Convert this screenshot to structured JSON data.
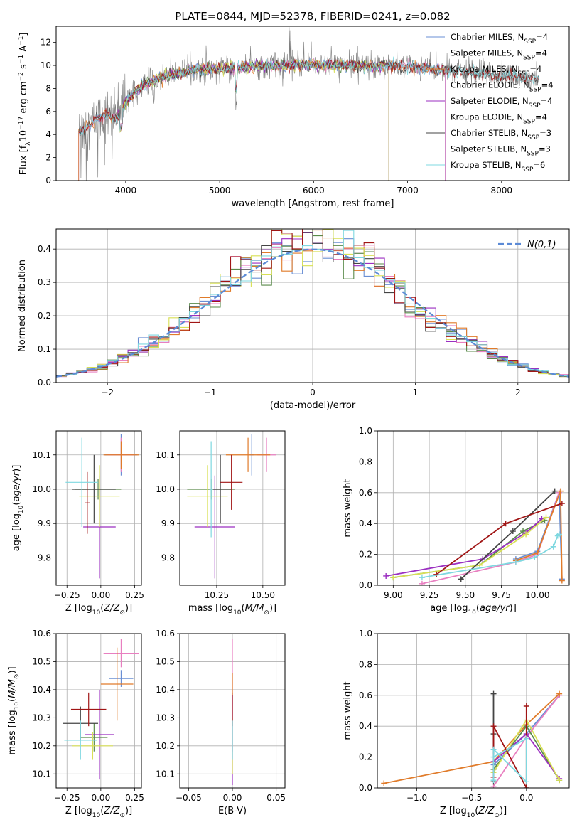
{
  "figure_title": "PLATE=0844, MJD=52378, FIBERID=0241, z=0.082",
  "palette": {
    "Chabrier MILES": "#6a8fd4",
    "Salpeter MILES": "#e87fc0",
    "Kroupa MILES": "#e07b2a",
    "Chabrier ELODIE": "#5a8a4a",
    "Salpeter ELODIE": "#9b2fc1",
    "Kroupa ELODIE": "#d8e055",
    "Chabrier STELIB": "#444444",
    "Salpeter STELIB": "#a01515",
    "Kroupa STELIB": "#7fd8e0",
    "data": "#808080",
    "normal": "#5b8ad6",
    "grid": "#b0b0b0"
  },
  "chart_data": [
    {
      "id": "spectrum",
      "type": "line",
      "xlabel": "wavelength [Angstrom, rest frame]",
      "ylabel": "Flux [f_λ 10^-17 erg cm^-2 s^-1 A^-1]",
      "xlim": [
        3260,
        8720
      ],
      "ylim": [
        0,
        13.4
      ],
      "xticks": [
        4000,
        5000,
        6000,
        7000,
        8000
      ],
      "yticks": [
        0,
        2,
        4,
        6,
        8,
        10,
        12
      ],
      "grid": false,
      "legend_position": "right",
      "legend": [
        {
          "name": "Chabrier MILES",
          "nssp": "4"
        },
        {
          "name": "Salpeter MILES",
          "nssp": "4"
        },
        {
          "name": "Kroupa MILES",
          "nssp": "4"
        },
        {
          "name": "Chabrier ELODIE",
          "nssp": "4"
        },
        {
          "name": "Salpeter ELODIE",
          "nssp": "4"
        },
        {
          "name": "Kroupa ELODIE",
          "nssp": "4"
        },
        {
          "name": "Chabrier STELIB",
          "nssp": "3"
        },
        {
          "name": "Salpeter STELIB",
          "nssp": "3"
        },
        {
          "name": "Kroupa STELIB",
          "nssp": "6"
        }
      ],
      "continuum": {
        "x": [
          3500,
          3600,
          3700,
          3800,
          3900,
          4000,
          4100,
          4200,
          4300,
          4500,
          4700,
          5000,
          5300,
          5600,
          6000,
          6300,
          6600,
          7000,
          7400,
          7800,
          8200,
          8400
        ],
        "y": [
          4.2,
          4.6,
          5.4,
          5.7,
          5.3,
          6.8,
          7.8,
          8.3,
          8.7,
          9.2,
          9.6,
          9.7,
          9.9,
          10.0,
          10.1,
          10.0,
          10.0,
          9.9,
          9.6,
          9.3,
          9.0,
          8.8
        ]
      },
      "series_ranges": {
        "Chabrier MILES": [
          3500,
          7400
        ],
        "Salpeter MILES": [
          3500,
          7400
        ],
        "Kroupa MILES": [
          3500,
          7430
        ],
        "Chabrier ELODIE": [
          3900,
          6800
        ],
        "Salpeter ELODIE": [
          3900,
          6800
        ],
        "Kroupa ELODIE": [
          3900,
          6800
        ],
        "Chabrier STELIB": [
          3500,
          8400
        ],
        "Salpeter STELIB": [
          3500,
          8400
        ],
        "Kroupa STELIB": [
          3500,
          8400
        ]
      }
    },
    {
      "id": "residuals",
      "type": "line",
      "xlabel": "(data-model)/error",
      "ylabel": "Normed distribution",
      "xlim": [
        -2.5,
        2.5
      ],
      "ylim": [
        0,
        0.46
      ],
      "xticks": [
        -2,
        -1,
        0,
        1,
        2
      ],
      "yticks": [
        0.0,
        0.1,
        0.2,
        0.3,
        0.4
      ],
      "grid": true,
      "legend_position": "top-right",
      "normal_label": "N(0,1)",
      "bin_width": 0.1
    },
    {
      "id": "age_vs_Z",
      "type": "scatter",
      "xlabel": "Z [log10(Z/Z⊙)]",
      "ylabel": "age  [log10(age/yr)]",
      "xlim": [
        -0.33,
        0.3
      ],
      "ylim": [
        9.72,
        10.17
      ],
      "xticks": [
        -0.25,
        0.0,
        0.25
      ],
      "yticks": [
        9.8,
        9.9,
        10.0,
        10.1
      ],
      "grid": true,
      "points": [
        {
          "series": "Chabrier MILES",
          "x": 0.15,
          "y": 10.1,
          "xerr": 0.12,
          "yerr": 0.06
        },
        {
          "series": "Salpeter MILES",
          "x": 0.15,
          "y": 10.1,
          "xerr": 0.1,
          "yerr": 0.05
        },
        {
          "series": "Kroupa MILES",
          "x": 0.15,
          "y": 10.1,
          "xerr": 0.13,
          "yerr": 0.04
        },
        {
          "series": "Chabrier ELODIE",
          "x": -0.02,
          "y": 10.0,
          "xerr": 0.17,
          "yerr": 0.03
        },
        {
          "series": "Salpeter ELODIE",
          "x": -0.01,
          "y": 9.89,
          "xerr": 0.12,
          "yerr": 0.15
        },
        {
          "series": "Kroupa ELODIE",
          "x": -0.01,
          "y": 9.98,
          "xerr": 0.15,
          "yerr": 0.09
        },
        {
          "series": "Chabrier STELIB",
          "x": -0.05,
          "y": 10.0,
          "xerr": 0.16,
          "yerr": 0.1
        },
        {
          "series": "Salpeter STELIB",
          "x": -0.1,
          "y": 9.96,
          "xerr": 0.02,
          "yerr": 0.09
        },
        {
          "series": "Kroupa STELIB",
          "x": -0.14,
          "y": 10.02,
          "xerr": 0.12,
          "yerr": 0.13
        }
      ]
    },
    {
      "id": "age_vs_mass",
      "type": "scatter",
      "xlabel": "mass [log10(M/M⊙)]",
      "ylabel": "",
      "xlim": [
        10.05,
        10.62
      ],
      "ylim": [
        9.72,
        10.17
      ],
      "xticks": [
        10.25,
        10.5
      ],
      "yticks": [
        9.8,
        9.9,
        10.0,
        10.1
      ],
      "grid": true,
      "points": [
        {
          "series": "Chabrier MILES",
          "x": 10.44,
          "y": 10.1,
          "xerr": 0.01,
          "yerr": 0.06
        },
        {
          "series": "Salpeter MILES",
          "x": 10.52,
          "y": 10.1,
          "xerr": 0.05,
          "yerr": 0.05
        },
        {
          "series": "Kroupa MILES",
          "x": 10.42,
          "y": 10.1,
          "xerr": 0.12,
          "yerr": 0.05
        },
        {
          "series": "Chabrier ELODIE",
          "x": 10.22,
          "y": 10.0,
          "xerr": 0.13,
          "yerr": 0.03
        },
        {
          "series": "Salpeter ELODIE",
          "x": 10.24,
          "y": 9.89,
          "xerr": 0.11,
          "yerr": 0.15
        },
        {
          "series": "Kroupa ELODIE",
          "x": 10.2,
          "y": 9.98,
          "xerr": 0.11,
          "yerr": 0.09
        },
        {
          "series": "Chabrier STELIB",
          "x": 10.27,
          "y": 10.0,
          "xerr": 0.06,
          "yerr": 0.1
        },
        {
          "series": "Salpeter STELIB",
          "x": 10.33,
          "y": 10.02,
          "xerr": 0.06,
          "yerr": 0.08
        },
        {
          "series": "Kroupa STELIB",
          "x": 10.22,
          "y": 10.0,
          "xerr": 0.01,
          "yerr": 0.14
        }
      ]
    },
    {
      "id": "weight_vs_age",
      "type": "line",
      "xlabel": "age  [log10(age/yr)]",
      "ylabel": "mass weight",
      "xlim": [
        8.89,
        10.22
      ],
      "ylim": [
        0,
        1.0
      ],
      "xticks": [
        9.0,
        9.25,
        9.5,
        9.75,
        10.0
      ],
      "yticks": [
        0.0,
        0.2,
        0.4,
        0.6,
        0.8,
        1.0
      ],
      "grid": true,
      "series": [
        {
          "name": "Chabrier MILES",
          "x": [
            9.85,
            10.0,
            10.15,
            10.17
          ],
          "y": [
            0.17,
            0.22,
            0.6,
            0.04
          ]
        },
        {
          "name": "Salpeter MILES",
          "x": [
            9.2,
            9.85,
            10.0,
            10.15
          ],
          "y": [
            0.01,
            0.15,
            0.2,
            0.6
          ]
        },
        {
          "name": "Kroupa MILES",
          "x": [
            9.85,
            10.0,
            10.16,
            10.17
          ],
          "y": [
            0.16,
            0.21,
            0.61,
            0.03
          ]
        },
        {
          "name": "Chabrier ELODIE",
          "x": [
            9.0,
            9.6,
            9.9,
            10.05
          ],
          "y": [
            0.05,
            0.13,
            0.35,
            0.42
          ]
        },
        {
          "name": "Salpeter ELODIE",
          "x": [
            8.95,
            9.62,
            9.92,
            10.03
          ],
          "y": [
            0.06,
            0.17,
            0.34,
            0.43
          ]
        },
        {
          "name": "Kroupa ELODIE",
          "x": [
            9.0,
            9.6,
            9.92,
            10.06
          ],
          "y": [
            0.05,
            0.13,
            0.33,
            0.44
          ]
        },
        {
          "name": "Chabrier STELIB",
          "x": [
            9.47,
            9.83,
            10.12
          ],
          "y": [
            0.04,
            0.35,
            0.61
          ]
        },
        {
          "name": "Salpeter STELIB",
          "x": [
            9.3,
            9.78,
            10.17
          ],
          "y": [
            0.07,
            0.4,
            0.53
          ]
        },
        {
          "name": "Kroupa STELIB",
          "x": [
            9.2,
            9.85,
            9.98,
            10.11,
            10.14,
            10.15
          ],
          "y": [
            0.05,
            0.15,
            0.18,
            0.25,
            0.32,
            0.33
          ]
        }
      ]
    },
    {
      "id": "mass_vs_Z",
      "type": "scatter",
      "xlabel": "Z [log10(Z/Z⊙)]",
      "ylabel": "mass [log10(M/M⊙)]",
      "xlim": [
        -0.33,
        0.3
      ],
      "ylim": [
        10.05,
        10.6
      ],
      "xticks": [
        -0.25,
        0.0,
        0.25
      ],
      "yticks": [
        10.1,
        10.2,
        10.3,
        10.4,
        10.5,
        10.6
      ],
      "grid": true,
      "points": [
        {
          "series": "Chabrier MILES",
          "x": 0.15,
          "y": 10.44,
          "xerr": 0.09,
          "yerr": 0.03
        },
        {
          "series": "Salpeter MILES",
          "x": 0.15,
          "y": 10.53,
          "xerr": 0.13,
          "yerr": 0.05
        },
        {
          "series": "Kroupa MILES",
          "x": 0.12,
          "y": 10.42,
          "xerr": 0.12,
          "yerr": 0.13
        },
        {
          "series": "Chabrier ELODIE",
          "x": -0.05,
          "y": 10.23,
          "xerr": 0.1,
          "yerr": 0.05
        },
        {
          "series": "Salpeter ELODIE",
          "x": -0.01,
          "y": 10.24,
          "xerr": 0.11,
          "yerr": 0.16
        },
        {
          "series": "Kroupa ELODIE",
          "x": -0.06,
          "y": 10.2,
          "xerr": 0.15,
          "yerr": 0.05
        },
        {
          "series": "Chabrier STELIB",
          "x": -0.15,
          "y": 10.28,
          "xerr": 0.13,
          "yerr": 0.06
        },
        {
          "series": "Salpeter STELIB",
          "x": -0.09,
          "y": 10.33,
          "xerr": 0.13,
          "yerr": 0.06
        },
        {
          "series": "Kroupa STELIB",
          "x": -0.15,
          "y": 10.22,
          "xerr": 0.12,
          "yerr": 0.07
        }
      ]
    },
    {
      "id": "mass_vs_EBV",
      "type": "scatter",
      "xlabel": "E(B-V)",
      "ylabel": "",
      "xlim": [
        -0.06,
        0.06
      ],
      "ylim": [
        10.05,
        10.6
      ],
      "xticks": [
        -0.05,
        0.0,
        0.05
      ],
      "yticks": [
        10.1,
        10.2,
        10.3,
        10.4,
        10.5,
        10.6
      ],
      "grid": true,
      "points": [
        {
          "series": "Salpeter MILES",
          "x": 0.0,
          "y": 10.38,
          "xerr": 0.0,
          "yerr": 0.2
        },
        {
          "series": "Salpeter ELODIE",
          "x": 0.0,
          "y": 10.22,
          "xerr": 0.0,
          "yerr": 0.16
        },
        {
          "series": "Kroupa ELODIE",
          "x": 0.0,
          "y": 10.2,
          "xerr": 0.0,
          "yerr": 0.1
        },
        {
          "series": "Salpeter STELIB",
          "x": 0.0,
          "y": 10.33,
          "xerr": 0.0,
          "yerr": 0.06
        },
        {
          "series": "Kroupa STELIB",
          "x": 0.0,
          "y": 10.22,
          "xerr": 0.0,
          "yerr": 0.07
        },
        {
          "series": "Kroupa MILES",
          "x": 0.0,
          "y": 10.42,
          "xerr": 0.0,
          "yerr": 0.04
        }
      ]
    },
    {
      "id": "weight_vs_Z",
      "type": "line",
      "xlabel": "Z [log10(Z/Z⊙)]",
      "ylabel": "mass weight",
      "xlim": [
        -1.36,
        0.39
      ],
      "ylim": [
        0,
        1.0
      ],
      "xticks": [
        -1.0,
        -0.5,
        0.0
      ],
      "yticks": [
        0.0,
        0.2,
        0.4,
        0.6,
        0.8,
        1.0
      ],
      "grid": true,
      "series": [
        {
          "name": "Chabrier MILES",
          "x": [
            -0.3,
            0.0,
            0.3
          ],
          "y": [
            0.15,
            0.35,
            0.6
          ]
        },
        {
          "name": "Salpeter MILES",
          "x": [
            -0.3,
            0.0,
            0.3
          ],
          "y": [
            0.01,
            0.33,
            0.6
          ]
        },
        {
          "name": "Kroupa MILES",
          "x": [
            -1.3,
            -0.3,
            0.0,
            0.3
          ],
          "y": [
            0.03,
            0.17,
            0.41,
            0.61
          ]
        },
        {
          "name": "Chabrier ELODIE",
          "x": [
            -0.3,
            0.0,
            0.3
          ],
          "y": [
            0.12,
            0.4,
            0.05
          ]
        },
        {
          "name": "Salpeter ELODIE",
          "x": [
            -0.3,
            0.0,
            0.3
          ],
          "y": [
            0.17,
            0.35,
            0.06
          ]
        },
        {
          "name": "Kroupa ELODIE",
          "x": [
            -0.3,
            0.0,
            0.3
          ],
          "y": [
            0.1,
            0.44,
            0.05
          ]
        },
        {
          "name": "Chabrier STELIB",
          "x": [
            -0.3,
            -0.3,
            -0.3
          ],
          "y": [
            0.61,
            0.35,
            0.04
          ]
        },
        {
          "name": "Salpeter STELIB",
          "x": [
            -0.3,
            -0.3,
            0.0,
            0.0
          ],
          "y": [
            0.07,
            0.4,
            0.0,
            0.53
          ]
        },
        {
          "name": "Kroupa STELIB",
          "x": [
            -0.3,
            -0.3,
            0.0,
            0.0,
            -0.3
          ],
          "y": [
            0.05,
            0.25,
            0.04,
            0.32,
            0.2
          ]
        }
      ]
    }
  ]
}
